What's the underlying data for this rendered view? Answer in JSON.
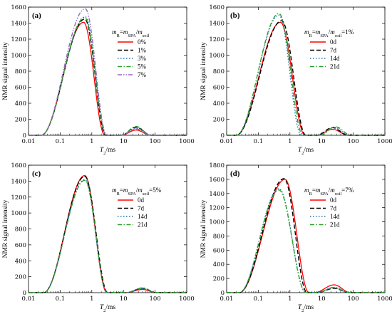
{
  "chart_data": [
    {
      "type": "line",
      "panel": "(a)",
      "legend_title": "mR=mSPA/msoil",
      "xlabel": "T2/ms",
      "ylabel": "NMR signal intensity",
      "xscale": "log",
      "xlim": [
        0.01,
        1000
      ],
      "ylim": [
        0,
        1600
      ],
      "x_ticks": [
        "0.01",
        "0.1",
        "1",
        "10",
        "100",
        "1000"
      ],
      "y_ticks": [
        "0",
        "200",
        "400",
        "600",
        "800",
        "1000",
        "1200",
        "1400",
        "1600"
      ],
      "legend_position": "right, upper middle",
      "series": [
        {
          "name": "0%",
          "color": "#ff0000",
          "dash": "solid",
          "peak1": {
            "x": 0.55,
            "y": 1410,
            "lo": 0.025,
            "hi": 2.6
          },
          "peak2": {
            "x": 25,
            "y": 65,
            "lo": 8.5,
            "hi": 75
          }
        },
        {
          "name": "1%",
          "color": "#000000",
          "dash": "dash",
          "peak1": {
            "x": 0.6,
            "y": 1450,
            "lo": 0.025,
            "hi": 2.8
          },
          "peak2": {
            "x": 25,
            "y": 100,
            "lo": 8.5,
            "hi": 75
          }
        },
        {
          "name": "3%",
          "color": "#1f77b4",
          "dash": "dot",
          "peak1": {
            "x": 0.62,
            "y": 1480,
            "lo": 0.025,
            "hi": 2.9
          },
          "peak2": {
            "x": 25,
            "y": 90,
            "lo": 8.5,
            "hi": 75
          }
        },
        {
          "name": "5%",
          "color": "#2ca02c",
          "dash": "dashdot",
          "peak1": {
            "x": 0.6,
            "y": 1470,
            "lo": 0.025,
            "hi": 2.9
          },
          "peak2": {
            "x": 25,
            "y": 110,
            "lo": 8.5,
            "hi": 75
          }
        },
        {
          "name": "7%",
          "color": "#9467bd",
          "dash": "dashdotdot",
          "peak1": {
            "x": 0.62,
            "y": 1580,
            "lo": 0.025,
            "hi": 3.0
          },
          "peak2": {
            "x": 25,
            "y": 80,
            "lo": 8.5,
            "hi": 75
          }
        }
      ]
    },
    {
      "type": "line",
      "panel": "(b)",
      "legend_title": "mR=mSPA/msoil=1%",
      "xlabel": "T2/ms",
      "ylabel": "NMR signal intensity",
      "xscale": "log",
      "xlim": [
        0.01,
        1000
      ],
      "ylim": [
        0,
        1600
      ],
      "x_ticks": [
        "0.01",
        "0.1",
        "1",
        "10",
        "100",
        "1000"
      ],
      "y_ticks": [
        "0",
        "200",
        "400",
        "600",
        "800",
        "1000",
        "1200",
        "1400",
        "1600"
      ],
      "legend_position": "right, upper middle",
      "series": [
        {
          "name": "0d",
          "color": "#ff0000",
          "dash": "solid",
          "peak1": {
            "x": 0.5,
            "y": 1410,
            "lo": 0.02,
            "hi": 3.0
          },
          "peak2": {
            "x": 22,
            "y": 75,
            "lo": 7,
            "hi": 70
          }
        },
        {
          "name": "7d",
          "color": "#000000",
          "dash": "dash",
          "peak1": {
            "x": 0.55,
            "y": 1430,
            "lo": 0.02,
            "hi": 3.2
          },
          "peak2": {
            "x": 22,
            "y": 95,
            "lo": 7,
            "hi": 70
          }
        },
        {
          "name": "14d",
          "color": "#1f77b4",
          "dash": "dot",
          "peak1": {
            "x": 0.45,
            "y": 1500,
            "lo": 0.02,
            "hi": 2.3
          },
          "peak2": {
            "x": 25,
            "y": 100,
            "lo": 8,
            "hi": 75
          }
        },
        {
          "name": "21d",
          "color": "#2ca02c",
          "dash": "dashdot",
          "peak1": {
            "x": 0.45,
            "y": 1520,
            "lo": 0.02,
            "hi": 2.6
          },
          "peak2": {
            "x": 28,
            "y": 105,
            "lo": 9,
            "hi": 85
          }
        }
      ]
    },
    {
      "type": "line",
      "panel": "(c)",
      "legend_title": "mR=mSPA/msoil=5%",
      "xlabel": "T2/ms",
      "ylabel": "NMR signal intensity",
      "xscale": "log",
      "xlim": [
        0.01,
        1000
      ],
      "ylim": [
        0,
        1600
      ],
      "x_ticks": [
        "0.01",
        "0.1",
        "1",
        "10",
        "100",
        "1000"
      ],
      "y_ticks": [
        "0",
        "200",
        "400",
        "600",
        "800",
        "1000",
        "1200",
        "1400",
        "1600"
      ],
      "legend_position": "right, upper middle",
      "series": [
        {
          "name": "0d",
          "color": "#ff0000",
          "dash": "solid",
          "peak1": {
            "x": 0.6,
            "y": 1470,
            "lo": 0.03,
            "hi": 3.0
          },
          "peak2": {
            "x": 40,
            "y": 40,
            "lo": 12,
            "hi": 110
          }
        },
        {
          "name": "7d",
          "color": "#000000",
          "dash": "dash",
          "peak1": {
            "x": 0.6,
            "y": 1460,
            "lo": 0.03,
            "hi": 3.2
          },
          "peak2": {
            "x": 40,
            "y": 55,
            "lo": 12,
            "hi": 110
          }
        },
        {
          "name": "14d",
          "color": "#1f77b4",
          "dash": "dot",
          "peak1": {
            "x": 0.6,
            "y": 1420,
            "lo": 0.03,
            "hi": 3.0
          },
          "peak2": {
            "x": 40,
            "y": 50,
            "lo": 12,
            "hi": 110
          }
        },
        {
          "name": "21d",
          "color": "#2ca02c",
          "dash": "dashdot",
          "peak1": {
            "x": 0.6,
            "y": 1410,
            "lo": 0.03,
            "hi": 3.1
          },
          "peak2": {
            "x": 40,
            "y": 60,
            "lo": 12,
            "hi": 110
          }
        }
      ]
    },
    {
      "type": "line",
      "panel": "(d)",
      "legend_title": "mR=mSPA/msoil=7%",
      "xlabel": "T2/ms",
      "ylabel": "NMR signal intensity",
      "xscale": "log",
      "xlim": [
        0.01,
        1000
      ],
      "ylim": [
        0,
        1800
      ],
      "x_ticks": [
        "0.01",
        "0.1",
        "1",
        "10",
        "100",
        "1000"
      ],
      "y_ticks": [
        "0",
        "200",
        "400",
        "600",
        "800",
        "1000",
        "1200",
        "1400",
        "1600",
        "1800"
      ],
      "legend_position": "right, upper middle",
      "series": [
        {
          "name": "0d",
          "color": "#ff0000",
          "dash": "solid",
          "peak1": {
            "x": 0.7,
            "y": 1600,
            "lo": 0.025,
            "hi": 4.0
          },
          "peak2": {
            "x": 25,
            "y": 110,
            "lo": 6,
            "hi": 80
          }
        },
        {
          "name": "7d",
          "color": "#000000",
          "dash": "dash",
          "peak1": {
            "x": 0.65,
            "y": 1610,
            "lo": 0.025,
            "hi": 3.5
          },
          "peak2": {
            "x": 25,
            "y": 60,
            "lo": 7,
            "hi": 75
          }
        },
        {
          "name": "14d",
          "color": "#1f77b4",
          "dash": "dot",
          "peak1": {
            "x": 0.45,
            "y": 1470,
            "lo": 0.025,
            "hi": 3.2
          },
          "peak2": {
            "x": 25,
            "y": 70,
            "lo": 7,
            "hi": 75
          }
        },
        {
          "name": "21d",
          "color": "#2ca02c",
          "dash": "dashdot",
          "peak1": {
            "x": 0.45,
            "y": 1450,
            "lo": 0.025,
            "hi": 3.2
          },
          "peak2": {
            "x": 25,
            "y": 75,
            "lo": 7,
            "hi": 75
          }
        }
      ]
    }
  ]
}
